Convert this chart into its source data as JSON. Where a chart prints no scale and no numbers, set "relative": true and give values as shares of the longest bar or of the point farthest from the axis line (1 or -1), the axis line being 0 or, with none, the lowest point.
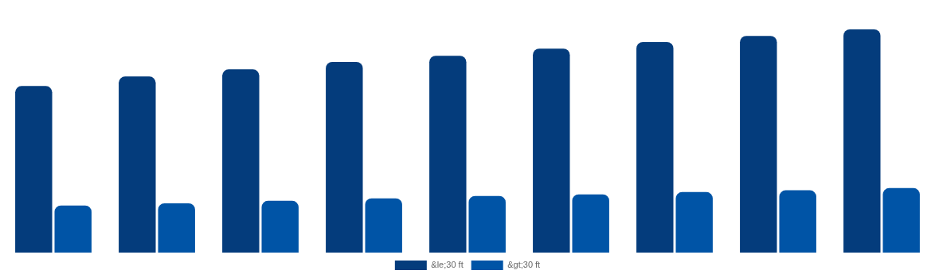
{
  "chart_data": {
    "type": "bar",
    "relative": true,
    "categories": [
      null,
      null,
      null,
      null,
      null,
      null,
      null,
      null,
      null
    ],
    "series": [
      {
        "name": "&le;30 ft",
        "color": "#043c7c",
        "values": [
          0.746,
          0.789,
          0.821,
          0.854,
          0.882,
          0.914,
          0.943,
          0.971,
          1
        ]
      },
      {
        "name": "&gt;30 ft",
        "color": "#0054a6",
        "values": [
          0.211,
          0.221,
          0.232,
          0.243,
          0.254,
          0.261,
          0.271,
          0.279,
          0.289
        ]
      }
    ],
    "legend": "bottom"
  }
}
